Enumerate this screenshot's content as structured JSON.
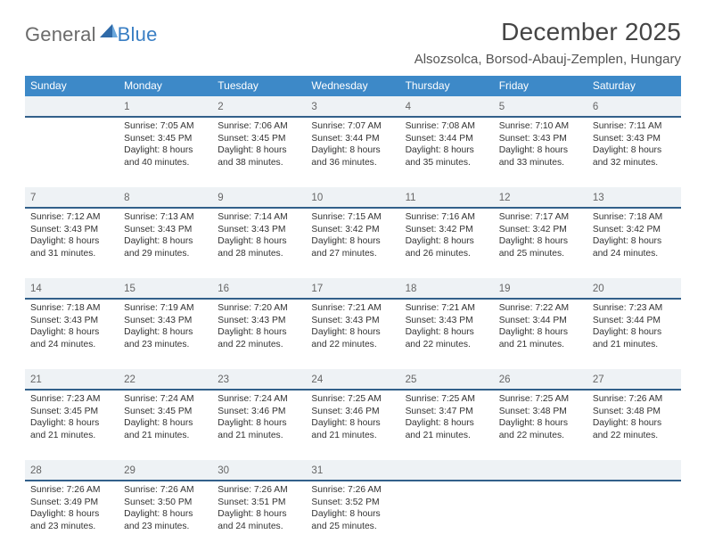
{
  "brand": {
    "word1": "General",
    "word2": "Blue"
  },
  "title": "December 2025",
  "location": "Alsozsolca, Borsod-Abauj-Zemplen, Hungary",
  "colors": {
    "header_bg": "#3d89c8",
    "header_text": "#ffffff",
    "date_row_bg": "#eef2f5",
    "date_row_border": "#32608a",
    "body_text": "#333333",
    "title_text": "#454545",
    "logo_gray": "#6b6b6b",
    "logo_blue": "#3a7fc4",
    "background": "#ffffff"
  },
  "days": [
    "Sunday",
    "Monday",
    "Tuesday",
    "Wednesday",
    "Thursday",
    "Friday",
    "Saturday"
  ],
  "weeks": [
    [
      {
        "date": "",
        "lines": []
      },
      {
        "date": "1",
        "lines": [
          "Sunrise: 7:05 AM",
          "Sunset: 3:45 PM",
          "Daylight: 8 hours",
          "and 40 minutes."
        ]
      },
      {
        "date": "2",
        "lines": [
          "Sunrise: 7:06 AM",
          "Sunset: 3:45 PM",
          "Daylight: 8 hours",
          "and 38 minutes."
        ]
      },
      {
        "date": "3",
        "lines": [
          "Sunrise: 7:07 AM",
          "Sunset: 3:44 PM",
          "Daylight: 8 hours",
          "and 36 minutes."
        ]
      },
      {
        "date": "4",
        "lines": [
          "Sunrise: 7:08 AM",
          "Sunset: 3:44 PM",
          "Daylight: 8 hours",
          "and 35 minutes."
        ]
      },
      {
        "date": "5",
        "lines": [
          "Sunrise: 7:10 AM",
          "Sunset: 3:43 PM",
          "Daylight: 8 hours",
          "and 33 minutes."
        ]
      },
      {
        "date": "6",
        "lines": [
          "Sunrise: 7:11 AM",
          "Sunset: 3:43 PM",
          "Daylight: 8 hours",
          "and 32 minutes."
        ]
      }
    ],
    [
      {
        "date": "7",
        "lines": [
          "Sunrise: 7:12 AM",
          "Sunset: 3:43 PM",
          "Daylight: 8 hours",
          "and 31 minutes."
        ]
      },
      {
        "date": "8",
        "lines": [
          "Sunrise: 7:13 AM",
          "Sunset: 3:43 PM",
          "Daylight: 8 hours",
          "and 29 minutes."
        ]
      },
      {
        "date": "9",
        "lines": [
          "Sunrise: 7:14 AM",
          "Sunset: 3:43 PM",
          "Daylight: 8 hours",
          "and 28 minutes."
        ]
      },
      {
        "date": "10",
        "lines": [
          "Sunrise: 7:15 AM",
          "Sunset: 3:42 PM",
          "Daylight: 8 hours",
          "and 27 minutes."
        ]
      },
      {
        "date": "11",
        "lines": [
          "Sunrise: 7:16 AM",
          "Sunset: 3:42 PM",
          "Daylight: 8 hours",
          "and 26 minutes."
        ]
      },
      {
        "date": "12",
        "lines": [
          "Sunrise: 7:17 AM",
          "Sunset: 3:42 PM",
          "Daylight: 8 hours",
          "and 25 minutes."
        ]
      },
      {
        "date": "13",
        "lines": [
          "Sunrise: 7:18 AM",
          "Sunset: 3:42 PM",
          "Daylight: 8 hours",
          "and 24 minutes."
        ]
      }
    ],
    [
      {
        "date": "14",
        "lines": [
          "Sunrise: 7:18 AM",
          "Sunset: 3:43 PM",
          "Daylight: 8 hours",
          "and 24 minutes."
        ]
      },
      {
        "date": "15",
        "lines": [
          "Sunrise: 7:19 AM",
          "Sunset: 3:43 PM",
          "Daylight: 8 hours",
          "and 23 minutes."
        ]
      },
      {
        "date": "16",
        "lines": [
          "Sunrise: 7:20 AM",
          "Sunset: 3:43 PM",
          "Daylight: 8 hours",
          "and 22 minutes."
        ]
      },
      {
        "date": "17",
        "lines": [
          "Sunrise: 7:21 AM",
          "Sunset: 3:43 PM",
          "Daylight: 8 hours",
          "and 22 minutes."
        ]
      },
      {
        "date": "18",
        "lines": [
          "Sunrise: 7:21 AM",
          "Sunset: 3:43 PM",
          "Daylight: 8 hours",
          "and 22 minutes."
        ]
      },
      {
        "date": "19",
        "lines": [
          "Sunrise: 7:22 AM",
          "Sunset: 3:44 PM",
          "Daylight: 8 hours",
          "and 21 minutes."
        ]
      },
      {
        "date": "20",
        "lines": [
          "Sunrise: 7:23 AM",
          "Sunset: 3:44 PM",
          "Daylight: 8 hours",
          "and 21 minutes."
        ]
      }
    ],
    [
      {
        "date": "21",
        "lines": [
          "Sunrise: 7:23 AM",
          "Sunset: 3:45 PM",
          "Daylight: 8 hours",
          "and 21 minutes."
        ]
      },
      {
        "date": "22",
        "lines": [
          "Sunrise: 7:24 AM",
          "Sunset: 3:45 PM",
          "Daylight: 8 hours",
          "and 21 minutes."
        ]
      },
      {
        "date": "23",
        "lines": [
          "Sunrise: 7:24 AM",
          "Sunset: 3:46 PM",
          "Daylight: 8 hours",
          "and 21 minutes."
        ]
      },
      {
        "date": "24",
        "lines": [
          "Sunrise: 7:25 AM",
          "Sunset: 3:46 PM",
          "Daylight: 8 hours",
          "and 21 minutes."
        ]
      },
      {
        "date": "25",
        "lines": [
          "Sunrise: 7:25 AM",
          "Sunset: 3:47 PM",
          "Daylight: 8 hours",
          "and 21 minutes."
        ]
      },
      {
        "date": "26",
        "lines": [
          "Sunrise: 7:25 AM",
          "Sunset: 3:48 PM",
          "Daylight: 8 hours",
          "and 22 minutes."
        ]
      },
      {
        "date": "27",
        "lines": [
          "Sunrise: 7:26 AM",
          "Sunset: 3:48 PM",
          "Daylight: 8 hours",
          "and 22 minutes."
        ]
      }
    ],
    [
      {
        "date": "28",
        "lines": [
          "Sunrise: 7:26 AM",
          "Sunset: 3:49 PM",
          "Daylight: 8 hours",
          "and 23 minutes."
        ]
      },
      {
        "date": "29",
        "lines": [
          "Sunrise: 7:26 AM",
          "Sunset: 3:50 PM",
          "Daylight: 8 hours",
          "and 23 minutes."
        ]
      },
      {
        "date": "30",
        "lines": [
          "Sunrise: 7:26 AM",
          "Sunset: 3:51 PM",
          "Daylight: 8 hours",
          "and 24 minutes."
        ]
      },
      {
        "date": "31",
        "lines": [
          "Sunrise: 7:26 AM",
          "Sunset: 3:52 PM",
          "Daylight: 8 hours",
          "and 25 minutes."
        ]
      },
      {
        "date": "",
        "lines": []
      },
      {
        "date": "",
        "lines": []
      },
      {
        "date": "",
        "lines": []
      }
    ]
  ]
}
